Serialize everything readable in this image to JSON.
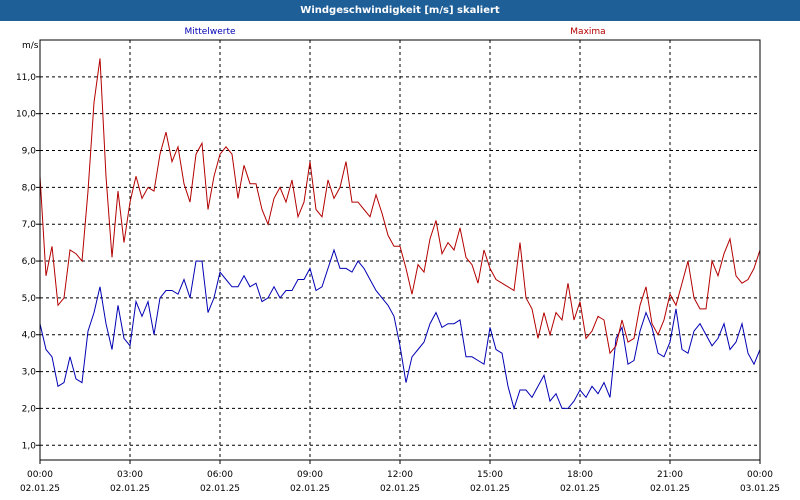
{
  "window": {
    "title": "Windgeschwindigkeit [m/s] skaliert"
  },
  "colors": {
    "titlebar": "#1f5f98",
    "mean": "#0000b4",
    "max": "#b40000",
    "grid": "#000000",
    "text": "#000000"
  },
  "chart_data": {
    "type": "line",
    "title": "Windgeschwindigkeit [m/s] skaliert",
    "ylabel": "m/s",
    "xlabel": "",
    "ylim": [
      0.6,
      12.0
    ],
    "xlim": [
      0,
      24
    ],
    "grid": true,
    "legend_placement": "top",
    "y_ticks": [
      "1,0",
      "2,0",
      "3,0",
      "4,0",
      "5,0",
      "6,0",
      "7,0",
      "8,0",
      "9,0",
      "10,0",
      "11,0"
    ],
    "x_ticks": [
      {
        "time": "00:00",
        "date": "02.01.25"
      },
      {
        "time": "03:00",
        "date": "02.01.25"
      },
      {
        "time": "06:00",
        "date": "02.01.25"
      },
      {
        "time": "09:00",
        "date": "02.01.25"
      },
      {
        "time": "12:00",
        "date": "02.01.25"
      },
      {
        "time": "15:00",
        "date": "02.01.25"
      },
      {
        "time": "18:00",
        "date": "02.01.25"
      },
      {
        "time": "21:00",
        "date": "02.01.25"
      },
      {
        "time": "00:00",
        "date": "03.01.25"
      }
    ],
    "x_hours": [
      0,
      0.2,
      0.4,
      0.6,
      0.8,
      1,
      1.2,
      1.4,
      1.6,
      1.8,
      2,
      2.2,
      2.4,
      2.6,
      2.8,
      3,
      3.2,
      3.4,
      3.6,
      3.8,
      4,
      4.2,
      4.4,
      4.6,
      4.8,
      5,
      5.2,
      5.4,
      5.6,
      5.8,
      6,
      6.2,
      6.4,
      6.6,
      6.8,
      7,
      7.2,
      7.4,
      7.6,
      7.8,
      8,
      8.2,
      8.4,
      8.6,
      8.8,
      9,
      9.2,
      9.4,
      9.6,
      9.8,
      10,
      10.2,
      10.4,
      10.6,
      10.8,
      11,
      11.2,
      11.4,
      11.6,
      11.8,
      12,
      12.2,
      12.4,
      12.6,
      12.8,
      13,
      13.2,
      13.4,
      13.6,
      13.8,
      14,
      14.2,
      14.4,
      14.6,
      14.8,
      15,
      15.2,
      15.4,
      15.6,
      15.8,
      16,
      16.2,
      16.4,
      16.6,
      16.8,
      17,
      17.2,
      17.4,
      17.6,
      17.8,
      18,
      18.2,
      18.4,
      18.6,
      18.8,
      19,
      19.2,
      19.4,
      19.6,
      19.8,
      20,
      20.2,
      20.4,
      20.6,
      20.8,
      21,
      21.2,
      21.4,
      21.6,
      21.8,
      22,
      22.2,
      22.4,
      22.6,
      22.8,
      23,
      23.2,
      23.4,
      23.6,
      23.8,
      24
    ],
    "series": [
      {
        "name": "Mittelwerte",
        "key": "mean",
        "values": [
          4.3,
          3.6,
          3.4,
          2.6,
          2.7,
          3.4,
          2.8,
          2.7,
          4.1,
          4.6,
          5.3,
          4.3,
          3.6,
          4.8,
          3.9,
          3.7,
          4.9,
          4.5,
          4.9,
          4.0,
          5.0,
          5.2,
          5.2,
          5.1,
          5.5,
          5.0,
          6.0,
          6.0,
          4.6,
          5.0,
          5.7,
          5.5,
          5.3,
          5.3,
          5.6,
          5.3,
          5.4,
          4.9,
          5.0,
          5.3,
          5.0,
          5.2,
          5.2,
          5.5,
          5.5,
          5.8,
          5.2,
          5.3,
          5.8,
          6.3,
          5.8,
          5.8,
          5.7,
          6.0,
          5.8,
          5.5,
          5.2,
          5.0,
          4.8,
          4.5,
          3.7,
          2.7,
          3.4,
          3.6,
          3.8,
          4.3,
          4.6,
          4.2,
          4.3,
          4.3,
          4.4,
          3.4,
          3.4,
          3.3,
          3.2,
          4.2,
          3.6,
          3.5,
          2.6,
          2.0,
          2.5,
          2.5,
          2.3,
          2.6,
          2.9,
          2.2,
          2.4,
          2.0,
          2.0,
          2.2,
          2.5,
          2.3,
          2.6,
          2.4,
          2.7,
          2.3,
          3.9,
          4.2,
          3.2,
          3.3,
          4.1,
          4.6,
          4.2,
          3.5,
          3.4,
          3.8,
          4.7,
          3.6,
          3.5,
          4.1,
          4.3,
          4.0,
          3.7,
          3.9,
          4.3,
          3.6,
          3.8,
          4.3,
          3.5,
          3.2,
          3.6
        ],
        "note": ""
      },
      {
        "name": "Maxima",
        "key": "max",
        "values": [
          8.3,
          5.6,
          6.4,
          4.8,
          5.0,
          6.3,
          6.2,
          6.0,
          7.9,
          10.3,
          11.5,
          8.3,
          6.1,
          7.9,
          6.5,
          7.6,
          8.3,
          7.7,
          8.0,
          7.9,
          8.9,
          9.5,
          8.7,
          9.1,
          8.1,
          7.6,
          8.9,
          9.2,
          7.4,
          8.3,
          8.9,
          9.1,
          8.9,
          7.7,
          8.6,
          8.1,
          8.1,
          7.4,
          7.0,
          7.7,
          8.0,
          7.6,
          8.2,
          7.2,
          7.6,
          8.7,
          7.4,
          7.2,
          8.2,
          7.7,
          8.0,
          8.7,
          7.6,
          7.6,
          7.4,
          7.2,
          7.8,
          7.3,
          6.7,
          6.4,
          6.4,
          5.8,
          5.1,
          5.9,
          5.7,
          6.6,
          7.1,
          6.2,
          6.5,
          6.3,
          6.9,
          6.1,
          5.9,
          5.4,
          6.3,
          5.8,
          5.5,
          5.4,
          5.3,
          5.2,
          6.5,
          5.0,
          4.7,
          3.9,
          4.6,
          4.0,
          4.6,
          4.4,
          5.4,
          4.4,
          4.9,
          3.9,
          4.1,
          4.5,
          4.4,
          3.5,
          3.7,
          4.4,
          3.8,
          3.9,
          4.8,
          5.3,
          4.3,
          4.0,
          4.4,
          5.1,
          4.8,
          5.4,
          6.0,
          5.0,
          4.7,
          4.7,
          6.0,
          5.6,
          6.2,
          6.6,
          5.6,
          5.4,
          5.5,
          5.8,
          6.3
        ],
        "note": ""
      }
    ]
  }
}
